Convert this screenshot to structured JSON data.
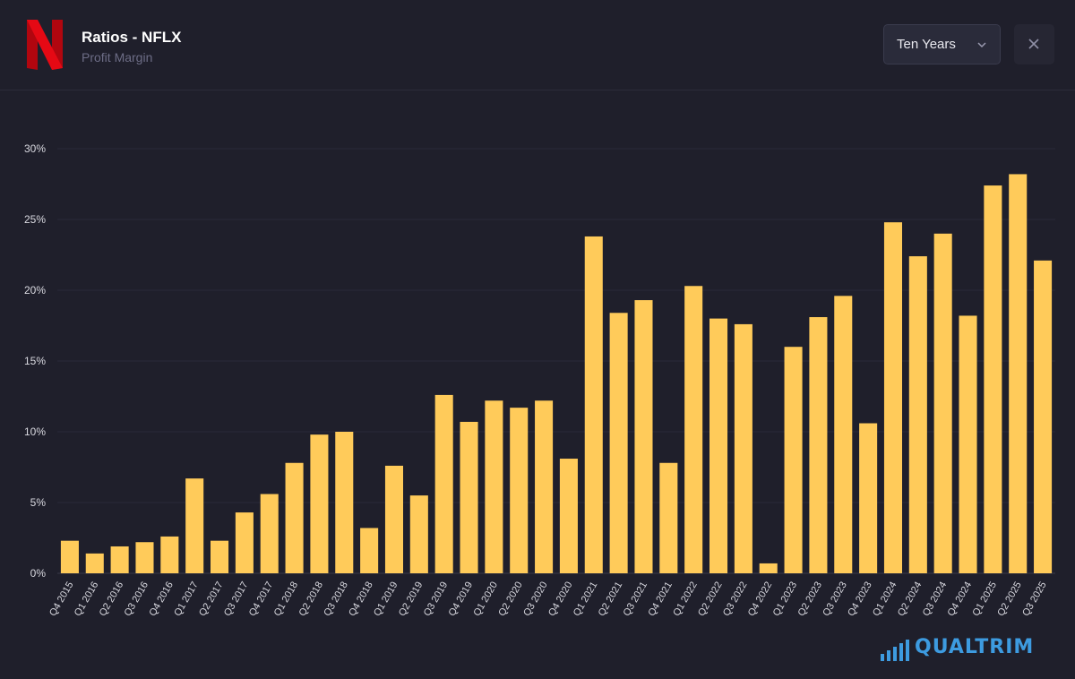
{
  "header": {
    "title": "Ratios - NFLX",
    "subtitle": "Profit Margin",
    "range_value": "Ten Years"
  },
  "brand": {
    "name": "QUALTRIM"
  },
  "icons": {
    "logo": "netflix-logo",
    "dropdown": "chevron-down-icon",
    "close": "close-icon",
    "brand": "bar-signal-icon"
  },
  "colors": {
    "background": "#1f1f2b",
    "bar": "#ffcb5a",
    "accent_logo": "#e50914",
    "brand": "#3d9be0"
  },
  "chart_data": {
    "type": "bar",
    "title": "",
    "xlabel": "",
    "ylabel": "",
    "ylim": [
      0,
      30
    ],
    "yticks": [
      0,
      5,
      10,
      15,
      20,
      25,
      30
    ],
    "ytick_labels": [
      "0%",
      "5%",
      "10%",
      "15%",
      "20%",
      "25%",
      "30%"
    ],
    "grid": true,
    "categories": [
      "Q4 2015",
      "Q1 2016",
      "Q2 2016",
      "Q3 2016",
      "Q4 2016",
      "Q1 2017",
      "Q2 2017",
      "Q3 2017",
      "Q4 2017",
      "Q1 2018",
      "Q2 2018",
      "Q3 2018",
      "Q4 2018",
      "Q1 2019",
      "Q2 2019",
      "Q3 2019",
      "Q4 2019",
      "Q1 2020",
      "Q2 2020",
      "Q3 2020",
      "Q4 2020",
      "Q1 2021",
      "Q2 2021",
      "Q3 2021",
      "Q4 2021",
      "Q1 2022",
      "Q2 2022",
      "Q3 2022",
      "Q4 2022",
      "Q1 2023",
      "Q2 2023",
      "Q3 2023",
      "Q4 2023",
      "Q1 2024",
      "Q2 2024",
      "Q3 2024",
      "Q4 2024",
      "Q1 2025",
      "Q2 2025",
      "Q3 2025"
    ],
    "values": [
      2.3,
      1.4,
      1.9,
      2.2,
      2.6,
      6.7,
      2.3,
      4.3,
      5.6,
      7.8,
      9.8,
      10.0,
      3.2,
      7.6,
      5.5,
      12.6,
      10.7,
      12.2,
      11.7,
      12.2,
      8.1,
      23.8,
      18.4,
      19.3,
      7.8,
      20.3,
      18.0,
      17.6,
      0.7,
      16.0,
      18.1,
      19.6,
      10.6,
      24.8,
      22.4,
      24.0,
      18.2,
      27.4,
      28.2,
      22.1
    ]
  }
}
